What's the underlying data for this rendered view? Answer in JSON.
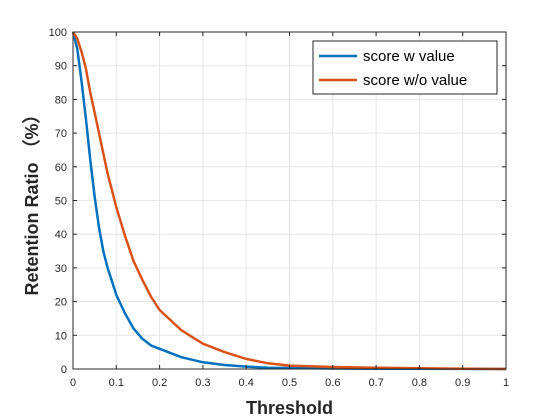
{
  "chart_data": {
    "type": "line",
    "xlabel": "Threshold",
    "ylabel": "Retention Ratio （%）",
    "xlim": [
      0,
      1
    ],
    "ylim": [
      0,
      100
    ],
    "xticks": [
      "0",
      "0.1",
      "0.2",
      "0.3",
      "0.4",
      "0.5",
      "0.6",
      "0.7",
      "0.8",
      "0.9",
      "1"
    ],
    "yticks": [
      "0",
      "10",
      "20",
      "30",
      "40",
      "50",
      "60",
      "70",
      "80",
      "90",
      "100"
    ],
    "grid": true,
    "legend_position": "top-right",
    "series": [
      {
        "name": "score w value",
        "color": "#0072BD",
        "x": [
          0,
          0.01,
          0.02,
          0.03,
          0.04,
          0.05,
          0.06,
          0.07,
          0.08,
          0.09,
          0.1,
          0.12,
          0.14,
          0.16,
          0.18,
          0.2,
          0.25,
          0.3,
          0.35,
          0.4,
          0.45,
          0.5,
          0.6,
          0.7,
          0.8,
          0.9,
          1.0
        ],
        "y": [
          100,
          95,
          85,
          74,
          62,
          51,
          42,
          35,
          30,
          26,
          22,
          16.5,
          12,
          9,
          7,
          6,
          3.5,
          2,
          1.2,
          0.7,
          0.4,
          0.3,
          0.15,
          0.1,
          0.05,
          0.02,
          0
        ]
      },
      {
        "name": "score w/o value",
        "color": "#D95319",
        "x": [
          0,
          0.01,
          0.02,
          0.03,
          0.04,
          0.05,
          0.06,
          0.07,
          0.08,
          0.09,
          0.1,
          0.12,
          0.14,
          0.16,
          0.18,
          0.2,
          0.25,
          0.3,
          0.35,
          0.4,
          0.45,
          0.5,
          0.6,
          0.7,
          0.8,
          0.9,
          1.0
        ],
        "y": [
          100,
          98,
          94,
          89,
          82,
          76,
          70,
          64,
          58,
          53,
          48,
          39.5,
          32,
          26.5,
          21.5,
          17.5,
          11.5,
          7.5,
          5,
          3,
          1.7,
          1,
          0.6,
          0.4,
          0.2,
          0.1,
          0
        ]
      }
    ]
  }
}
